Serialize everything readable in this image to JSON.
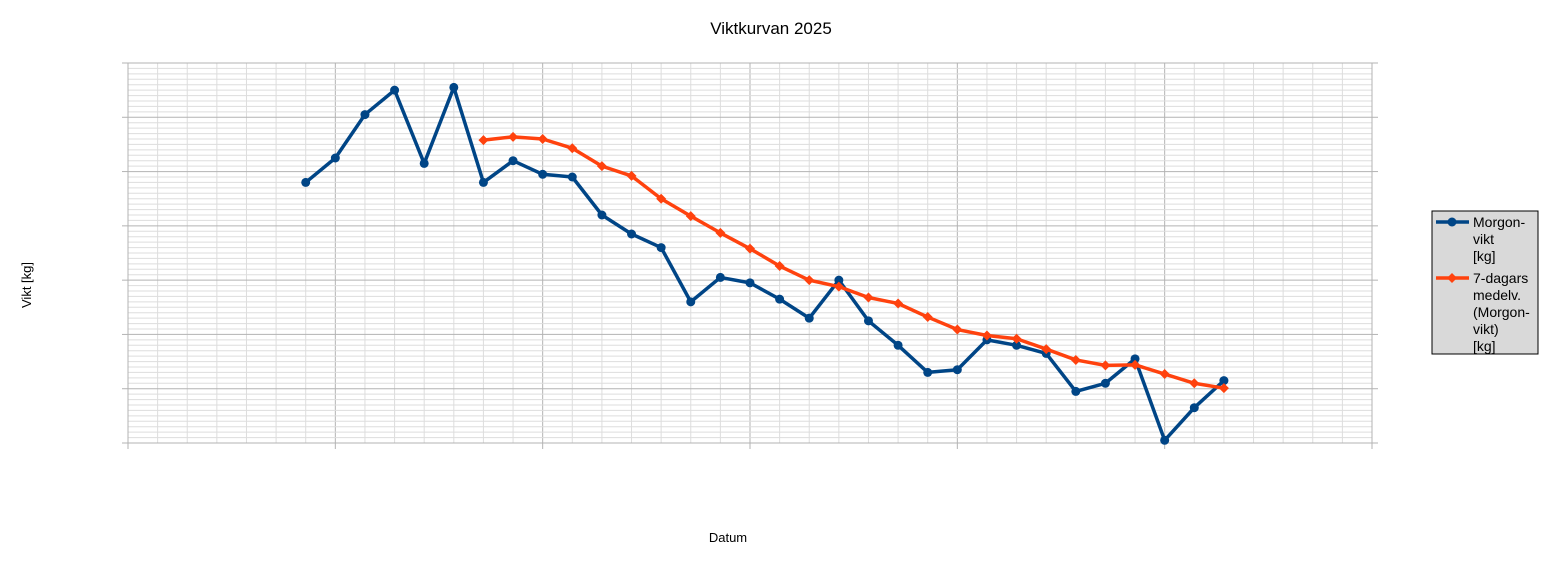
{
  "chart_data": {
    "type": "line",
    "title": "Viktkurvan 2025",
    "xlabel": "Datum",
    "ylabel": "Vikt [kg]",
    "xlim": [
      "2024-12-30",
      "2025-02-10"
    ],
    "ylim": [
      89,
      96
    ],
    "x_ticks": [
      "2024-12-30",
      "2025-01-06",
      "2025-01-13",
      "2025-01-20",
      "2025-01-27",
      "2025-02-03",
      "2025-02-10"
    ],
    "y_ticks": [
      89,
      90,
      91,
      92,
      93,
      94,
      95,
      96
    ],
    "secondary_y_axis": true,
    "grid": true,
    "legend_position": "right",
    "series": [
      {
        "name": "Morgon-\nvikt\n[kg]",
        "color": "#004586",
        "marker": "circle",
        "x": [
          "2025-01-05",
          "2025-01-06",
          "2025-01-07",
          "2025-01-08",
          "2025-01-09",
          "2025-01-10",
          "2025-01-11",
          "2025-01-12",
          "2025-01-13",
          "2025-01-14",
          "2025-01-15",
          "2025-01-16",
          "2025-01-17",
          "2025-01-18",
          "2025-01-19",
          "2025-01-20",
          "2025-01-21",
          "2025-01-22",
          "2025-01-23",
          "2025-01-24",
          "2025-01-25",
          "2025-01-26",
          "2025-01-27",
          "2025-01-28",
          "2025-01-29",
          "2025-01-30",
          "2025-01-31",
          "2025-02-01",
          "2025-02-02",
          "2025-02-03",
          "2025-02-04",
          "2025-02-05"
        ],
        "values": [
          93.8,
          94.25,
          95.05,
          95.5,
          94.15,
          95.55,
          93.8,
          94.2,
          93.95,
          93.9,
          93.2,
          92.85,
          92.6,
          91.6,
          92.05,
          91.95,
          91.65,
          91.3,
          92.0,
          91.25,
          90.8,
          90.3,
          90.35,
          90.9,
          90.8,
          90.65,
          89.95,
          90.1,
          90.55,
          89.05,
          89.65,
          90.15
        ]
      },
      {
        "name": "7-dagars\nmedelv.\n(Morgon-\nvikt)\n[kg]",
        "color": "#ff420e",
        "marker": "diamond",
        "x": [
          "2025-01-11",
          "2025-01-12",
          "2025-01-13",
          "2025-01-14",
          "2025-01-15",
          "2025-01-16",
          "2025-01-17",
          "2025-01-18",
          "2025-01-19",
          "2025-01-20",
          "2025-01-21",
          "2025-01-22",
          "2025-01-23",
          "2025-01-24",
          "2025-01-25",
          "2025-01-26",
          "2025-01-27",
          "2025-01-28",
          "2025-01-29",
          "2025-01-30",
          "2025-01-31",
          "2025-02-01",
          "2025-02-02",
          "2025-02-03",
          "2025-02-04",
          "2025-02-05"
        ],
        "values": [
          94.58,
          94.64,
          94.6,
          94.43,
          94.1,
          93.92,
          93.5,
          93.18,
          92.87,
          92.58,
          92.26,
          92.0,
          91.88,
          91.68,
          91.57,
          91.32,
          91.09,
          90.98,
          90.92,
          90.73,
          90.53,
          90.43,
          90.44,
          90.27,
          90.1,
          90.01
        ]
      }
    ]
  }
}
